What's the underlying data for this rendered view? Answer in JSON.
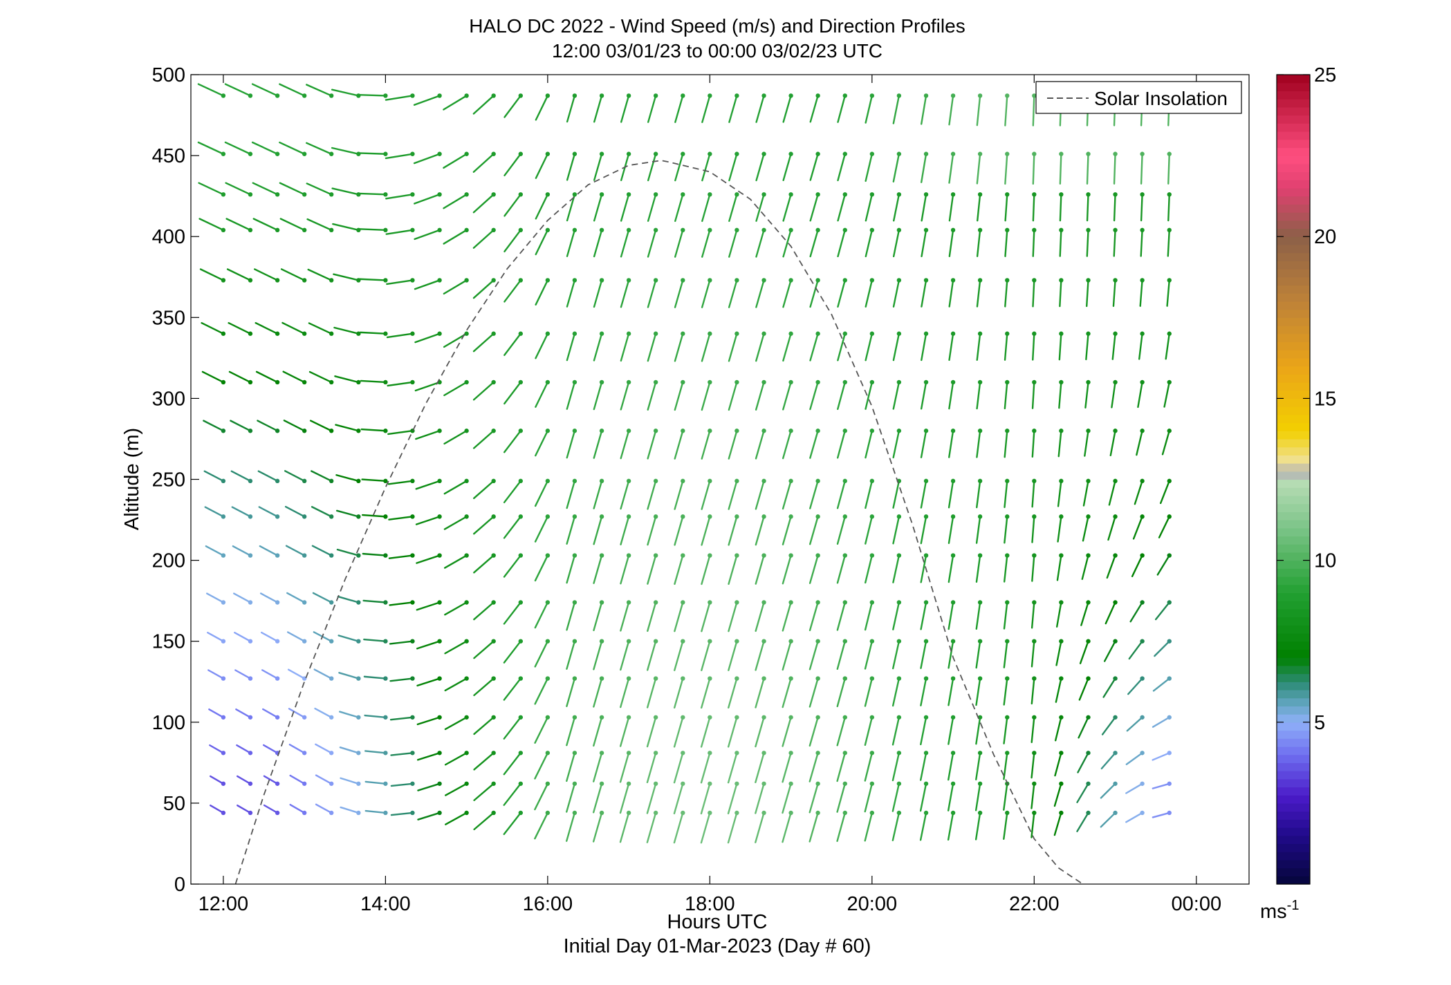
{
  "chart_data": {
    "type": "wind-barb profile",
    "title": "HALO DC 2022 - Wind Speed (m/s) and Direction Profiles",
    "subtitle": "12:00 03/01/23 to 00:00 03/02/23  UTC",
    "xlabel": "Hours UTC",
    "xlabel2": "Initial Day 01-Mar-2023 (Day # 60)",
    "ylabel": "Altitude (m)",
    "xlim": [
      11.6,
      24.65
    ],
    "ylim": [
      0,
      500
    ],
    "x_ticks": [
      12,
      14,
      16,
      18,
      20,
      22,
      24
    ],
    "x_tick_labels": [
      "12:00",
      "14:00",
      "16:00",
      "18:00",
      "20:00",
      "22:00",
      "00:00"
    ],
    "y_ticks": [
      0,
      50,
      100,
      150,
      200,
      250,
      300,
      350,
      400,
      450,
      500
    ],
    "y_tick_labels": [
      "0",
      "50",
      "100",
      "150",
      "200",
      "250",
      "300",
      "350",
      "400",
      "450",
      "500"
    ],
    "legend": {
      "entries": [
        "Solar Insolation"
      ],
      "position": "top-right"
    },
    "colorbar": {
      "label": "ms",
      "label_exponent": "-1",
      "range": [
        0,
        25
      ],
      "ticks": [
        5,
        10,
        15,
        20,
        25
      ],
      "tick_labels": [
        "5",
        "10",
        "15",
        "20",
        "25"
      ],
      "stops": [
        {
          "v": 0,
          "c": "#05063a"
        },
        {
          "v": 1.5,
          "c": "#200a8a"
        },
        {
          "v": 2.7,
          "c": "#4a1ac8"
        },
        {
          "v": 4,
          "c": "#6f6ff0"
        },
        {
          "v": 5,
          "c": "#8fb0f8"
        },
        {
          "v": 5.6,
          "c": "#5fa4bd"
        },
        {
          "v": 6.2,
          "c": "#2e8c78"
        },
        {
          "v": 7,
          "c": "#008000"
        },
        {
          "v": 9,
          "c": "#22a032"
        },
        {
          "v": 11,
          "c": "#7cc488"
        },
        {
          "v": 12.4,
          "c": "#b6dcb4"
        },
        {
          "v": 12.7,
          "c": "#b4b4b4"
        },
        {
          "v": 13.1,
          "c": "#f0e090"
        },
        {
          "v": 14,
          "c": "#f2d000"
        },
        {
          "v": 16,
          "c": "#eaa418"
        },
        {
          "v": 18,
          "c": "#be8238"
        },
        {
          "v": 20,
          "c": "#8c6048"
        },
        {
          "v": 21.5,
          "c": "#e04070"
        },
        {
          "v": 22.5,
          "c": "#ff4f80"
        },
        {
          "v": 25,
          "c": "#a0001e"
        }
      ]
    },
    "solar_insolation": {
      "style": "dashed",
      "color": "#555555",
      "peak_time": 17.4,
      "peak_altitude": 447,
      "x": [
        12.15,
        12.5,
        13.0,
        13.5,
        14.0,
        14.5,
        15.0,
        15.5,
        16.0,
        16.5,
        17.0,
        17.4,
        17.5,
        18.0,
        18.5,
        19.0,
        19.5,
        20.0,
        20.5,
        21.0,
        21.5,
        22.0,
        22.3,
        22.6
      ],
      "y": [
        0,
        55,
        125,
        188,
        245,
        297,
        342,
        380,
        410,
        432,
        444,
        447,
        446,
        440,
        423,
        394,
        352,
        295,
        222,
        140,
        80,
        28,
        10,
        0
      ]
    },
    "barbs": {
      "times": [
        12.0,
        12.333,
        12.667,
        13.0,
        13.333,
        13.667,
        14.0,
        14.333,
        14.667,
        15.0,
        15.333,
        15.667,
        16.0,
        16.333,
        16.667,
        17.0,
        17.333,
        17.667,
        18.0,
        18.333,
        18.667,
        19.0,
        19.333,
        19.667,
        20.0,
        20.333,
        20.667,
        21.0,
        21.333,
        21.667,
        22.0,
        22.333,
        22.667,
        23.0,
        23.333,
        23.667
      ],
      "altitudes": [
        44,
        62,
        81,
        103,
        127,
        150,
        174,
        203,
        227,
        249,
        280,
        310,
        340,
        373,
        404,
        426,
        451,
        487
      ],
      "units": "m/s",
      "note_direction": "degrees compass from which wind blows"
    }
  }
}
